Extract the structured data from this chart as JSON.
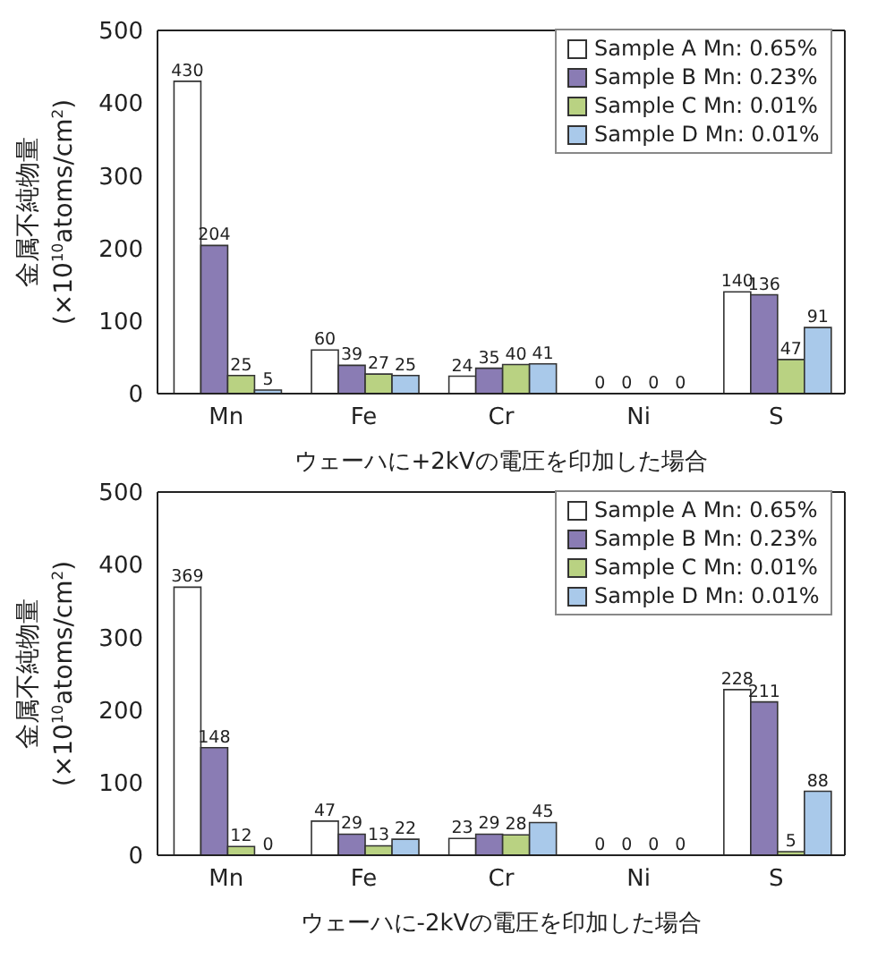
{
  "chart_data": [
    {
      "type": "bar",
      "xlabel": "ウェーハに+2kVの電圧を印加した場合",
      "ylabel": "金属不純物量\n(×10$^{10}$atoms/cm$^{2}$)",
      "categories": [
        "Mn",
        "Fe",
        "Cr",
        "Ni",
        "S"
      ],
      "series": [
        {
          "name": "Sample A Mn: 0.65%",
          "color": "#ffffff",
          "values": [
            430,
            60,
            24,
            0,
            140
          ]
        },
        {
          "name": "Sample B Mn: 0.23%",
          "color": "#8a7cb4",
          "values": [
            204,
            39,
            35,
            0,
            136
          ]
        },
        {
          "name": "Sample C Mn: 0.01%",
          "color": "#b9d282",
          "values": [
            25,
            27,
            40,
            0,
            47
          ]
        },
        {
          "name": "Sample D Mn: 0.01%",
          "color": "#a9c9ea",
          "values": [
            5,
            25,
            41,
            0,
            91
          ]
        }
      ],
      "ylim": [
        0,
        500
      ],
      "yticks": [
        0,
        100,
        200,
        300,
        400,
        500
      ],
      "data_labels": true,
      "legend": "top right"
    },
    {
      "type": "bar",
      "xlabel": "ウェーハに-2kVの電圧を印加した場合",
      "ylabel": "金属不純物量\n(×10$^{10}$atoms/cm$^{2}$)",
      "categories": [
        "Mn",
        "Fe",
        "Cr",
        "Ni",
        "S"
      ],
      "series": [
        {
          "name": "Sample A Mn: 0.65%",
          "color": "#ffffff",
          "values": [
            369,
            47,
            23,
            0,
            228
          ]
        },
        {
          "name": "Sample B Mn: 0.23%",
          "color": "#8a7cb4",
          "values": [
            148,
            29,
            29,
            0,
            211
          ]
        },
        {
          "name": "Sample C Mn: 0.01%",
          "color": "#b9d282",
          "values": [
            12,
            13,
            28,
            0,
            5
          ]
        },
        {
          "name": "Sample D Mn: 0.01%",
          "color": "#a9c9ea",
          "values": [
            0,
            22,
            45,
            0,
            88
          ]
        }
      ],
      "ylim": [
        0,
        500
      ],
      "yticks": [
        0,
        100,
        200,
        300,
        400,
        500
      ],
      "data_labels": true,
      "legend": "top right"
    }
  ]
}
